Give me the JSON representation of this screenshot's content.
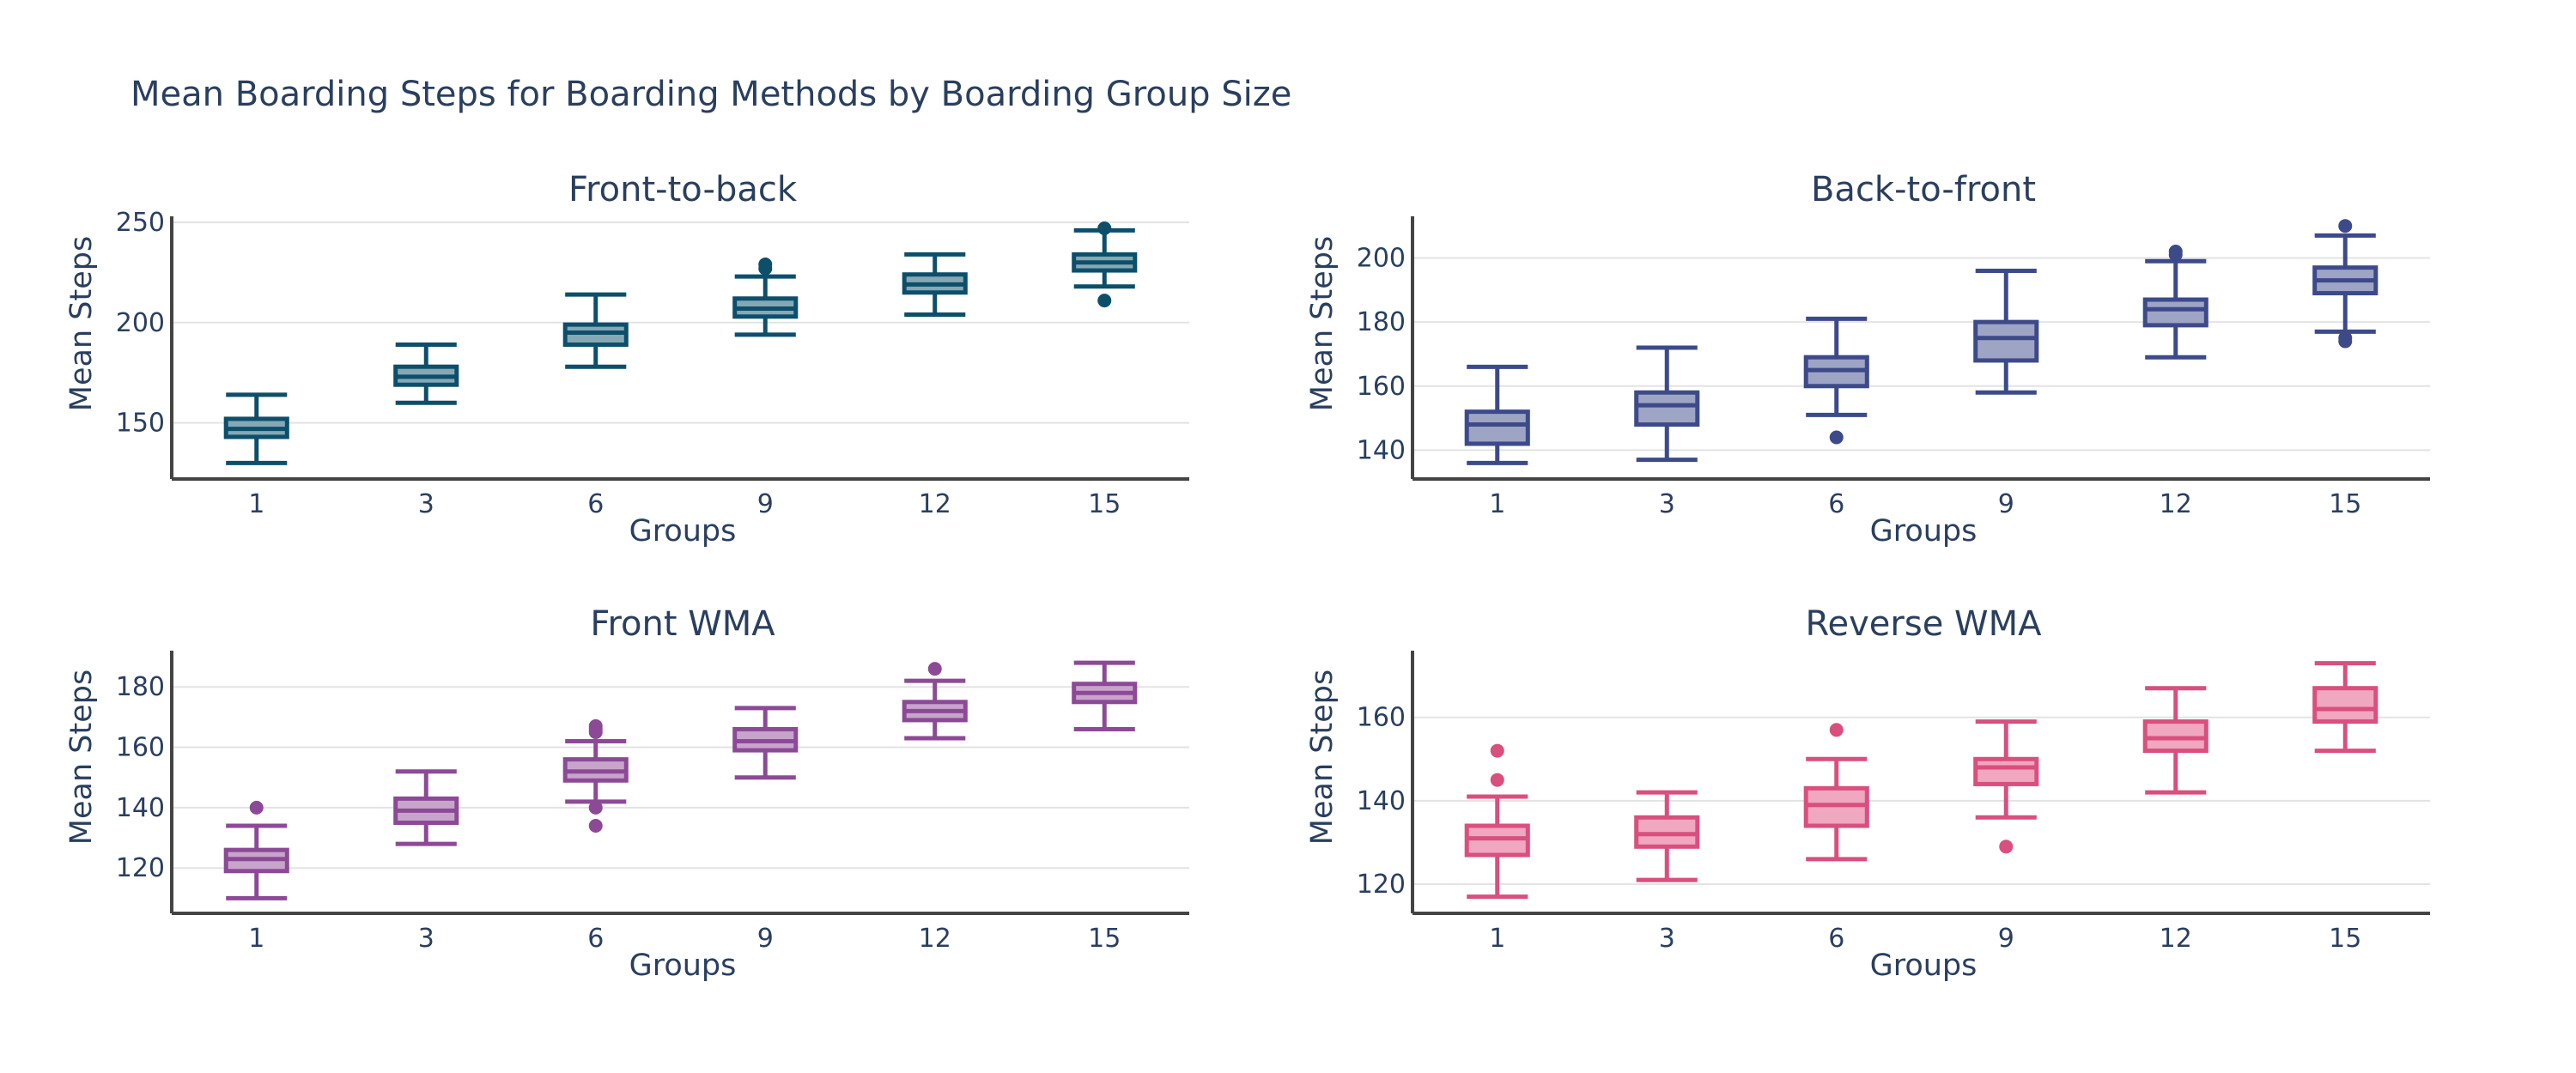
{
  "title": "Mean Boarding Steps for Boarding Methods by Boarding Group Size",
  "chart_data": [
    {
      "type": "box",
      "title": "Front-to-back",
      "xlabel": "Groups",
      "ylabel": "Mean Steps",
      "categories": [
        "1",
        "3",
        "6",
        "9",
        "12",
        "15"
      ],
      "yticks": [
        150,
        200,
        250
      ],
      "ylim": [
        122,
        253
      ],
      "grid": true,
      "color": "#0d4f6b",
      "fill": "#86a8b5",
      "boxes": [
        {
          "min": 130,
          "q1": 143,
          "median": 147,
          "q3": 152,
          "max": 164,
          "outliers": []
        },
        {
          "min": 160,
          "q1": 169,
          "median": 173,
          "q3": 178,
          "max": 189,
          "outliers": []
        },
        {
          "min": 178,
          "q1": 189,
          "median": 195,
          "q3": 199,
          "max": 214,
          "outliers": []
        },
        {
          "min": 194,
          "q1": 203,
          "median": 207,
          "q3": 212,
          "max": 223,
          "outliers": [
            227,
            229
          ]
        },
        {
          "min": 204,
          "q1": 215,
          "median": 219,
          "q3": 224,
          "max": 234,
          "outliers": []
        },
        {
          "min": 218,
          "q1": 226,
          "median": 230,
          "q3": 234,
          "max": 246,
          "outliers": [
            211,
            247
          ]
        }
      ]
    },
    {
      "type": "box",
      "title": "Back-to-front",
      "xlabel": "Groups",
      "ylabel": "Mean Steps",
      "categories": [
        "1",
        "3",
        "6",
        "9",
        "12",
        "15"
      ],
      "yticks": [
        140,
        160,
        180,
        200
      ],
      "ylim": [
        131,
        213
      ],
      "grid": true,
      "color": "#3d4a8a",
      "fill": "#9ea4c4",
      "boxes": [
        {
          "min": 136,
          "q1": 142,
          "median": 148,
          "q3": 152,
          "max": 166,
          "outliers": []
        },
        {
          "min": 137,
          "q1": 148,
          "median": 154,
          "q3": 158,
          "max": 172,
          "outliers": []
        },
        {
          "min": 151,
          "q1": 160,
          "median": 165,
          "q3": 169,
          "max": 181,
          "outliers": [
            144
          ]
        },
        {
          "min": 158,
          "q1": 168,
          "median": 175,
          "q3": 180,
          "max": 196,
          "outliers": []
        },
        {
          "min": 169,
          "q1": 179,
          "median": 184,
          "q3": 187,
          "max": 199,
          "outliers": [
            201,
            202
          ]
        },
        {
          "min": 177,
          "q1": 189,
          "median": 193,
          "q3": 197,
          "max": 207,
          "outliers": [
            174,
            175,
            210
          ]
        }
      ]
    },
    {
      "type": "box",
      "title": "Front WMA",
      "xlabel": "Groups",
      "ylabel": "Mean Steps",
      "categories": [
        "1",
        "3",
        "6",
        "9",
        "12",
        "15"
      ],
      "yticks": [
        120,
        140,
        160,
        180
      ],
      "ylim": [
        105,
        192
      ],
      "grid": true,
      "color": "#8c4a96",
      "fill": "#c7a5cb",
      "boxes": [
        {
          "min": 110,
          "q1": 119,
          "median": 123,
          "q3": 126,
          "max": 134,
          "outliers": [
            140
          ]
        },
        {
          "min": 128,
          "q1": 135,
          "median": 139,
          "q3": 143,
          "max": 152,
          "outliers": []
        },
        {
          "min": 142,
          "q1": 149,
          "median": 152,
          "q3": 156,
          "max": 162,
          "outliers": [
            134,
            140,
            165,
            166,
            167
          ]
        },
        {
          "min": 150,
          "q1": 159,
          "median": 162,
          "q3": 166,
          "max": 173,
          "outliers": []
        },
        {
          "min": 163,
          "q1": 169,
          "median": 172,
          "q3": 175,
          "max": 182,
          "outliers": [
            186
          ]
        },
        {
          "min": 166,
          "q1": 175,
          "median": 178,
          "q3": 181,
          "max": 188,
          "outliers": []
        }
      ]
    },
    {
      "type": "box",
      "title": "Reverse WMA",
      "xlabel": "Groups",
      "ylabel": "Mean Steps",
      "categories": [
        "1",
        "3",
        "6",
        "9",
        "12",
        "15"
      ],
      "yticks": [
        120,
        140,
        160
      ],
      "ylim": [
        113,
        176
      ],
      "grid": true,
      "color": "#d94f7e",
      "fill": "#f0a7c0",
      "boxes": [
        {
          "min": 117,
          "q1": 127,
          "median": 131,
          "q3": 134,
          "max": 141,
          "outliers": [
            145,
            152
          ]
        },
        {
          "min": 121,
          "q1": 129,
          "median": 132,
          "q3": 136,
          "max": 142,
          "outliers": []
        },
        {
          "min": 126,
          "q1": 134,
          "median": 139,
          "q3": 143,
          "max": 150,
          "outliers": [
            157
          ]
        },
        {
          "min": 136,
          "q1": 144,
          "median": 148,
          "q3": 150,
          "max": 159,
          "outliers": [
            129
          ]
        },
        {
          "min": 142,
          "q1": 152,
          "median": 155,
          "q3": 159,
          "max": 167,
          "outliers": []
        },
        {
          "min": 152,
          "q1": 159,
          "median": 162,
          "q3": 167,
          "max": 173,
          "outliers": []
        }
      ]
    }
  ]
}
